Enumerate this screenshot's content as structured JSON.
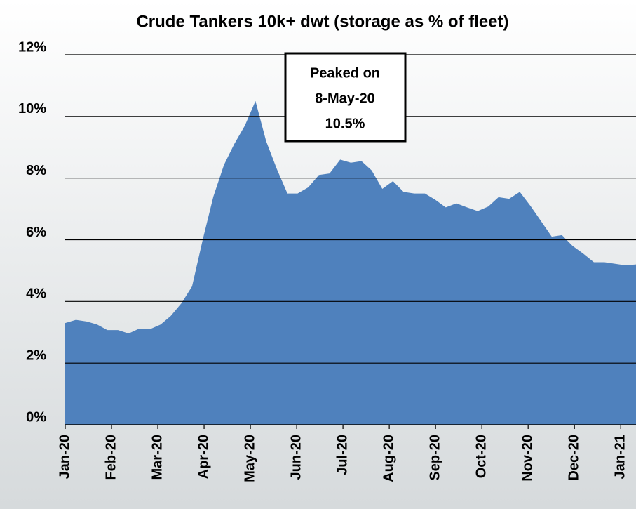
{
  "chart_data": {
    "type": "area",
    "title": "Crude Tankers 10k+ dwt (storage as % of fleet)",
    "annotation": [
      "Peaked on",
      "8-May-20",
      "10.5%"
    ],
    "color": "#4f81bd",
    "x": [
      0,
      0.23,
      0.46,
      0.69,
      0.91,
      1.14,
      1.37,
      1.6,
      1.83,
      2.06,
      2.28,
      2.51,
      2.74,
      2.97,
      3.2,
      3.43,
      3.65,
      3.88,
      4.11,
      4.34,
      4.57,
      4.8,
      5.02,
      5.25,
      5.48,
      5.71,
      5.94,
      6.17,
      6.4,
      6.62,
      6.85,
      7.08,
      7.31,
      7.54,
      7.77,
      7.99,
      8.22,
      8.45,
      8.68,
      8.91,
      9.14,
      9.36,
      9.59,
      9.82,
      10.05,
      10.28,
      10.51,
      10.73,
      10.96,
      11.19,
      11.42,
      11.65,
      11.88,
      12.1,
      12.33
    ],
    "values": [
      3.3,
      3.4,
      3.35,
      3.25,
      3.07,
      3.07,
      2.96,
      3.12,
      3.1,
      3.25,
      3.53,
      3.94,
      4.49,
      6.0,
      7.4,
      8.43,
      9.1,
      9.7,
      10.5,
      9.2,
      8.3,
      7.5,
      7.5,
      7.7,
      8.1,
      8.15,
      8.6,
      8.5,
      8.55,
      8.25,
      7.65,
      7.9,
      7.55,
      7.5,
      7.5,
      7.3,
      7.05,
      7.18,
      7.05,
      6.93,
      7.08,
      7.38,
      7.33,
      7.55,
      7.1,
      6.6,
      6.1,
      6.15,
      5.8,
      5.55,
      5.27,
      5.27,
      5.22,
      5.17,
      5.2
    ],
    "xlim": [
      0,
      12.33
    ],
    "xticks": [
      {
        "value": 0,
        "label": "Jan-20"
      },
      {
        "value": 1,
        "label": "Feb-20"
      },
      {
        "value": 2,
        "label": "Mar-20"
      },
      {
        "value": 3,
        "label": "Apr-20"
      },
      {
        "value": 4,
        "label": "May-20"
      },
      {
        "value": 5,
        "label": "Jun-20"
      },
      {
        "value": 6,
        "label": "Jul-20"
      },
      {
        "value": 7,
        "label": "Aug-20"
      },
      {
        "value": 8,
        "label": "Sep-20"
      },
      {
        "value": 9,
        "label": "Oct-20"
      },
      {
        "value": 10,
        "label": "Nov-20"
      },
      {
        "value": 11,
        "label": "Dec-20"
      },
      {
        "value": 12,
        "label": "Jan-21"
      }
    ],
    "ylim": [
      0,
      12
    ],
    "yticks": [
      {
        "value": 0,
        "label": "0%"
      },
      {
        "value": 2,
        "label": "2%"
      },
      {
        "value": 4,
        "label": "4%"
      },
      {
        "value": 6,
        "label": "6%"
      },
      {
        "value": 8,
        "label": "8%"
      },
      {
        "value": 10,
        "label": "10%"
      },
      {
        "value": 12,
        "label": "12%"
      }
    ],
    "grid": true
  }
}
